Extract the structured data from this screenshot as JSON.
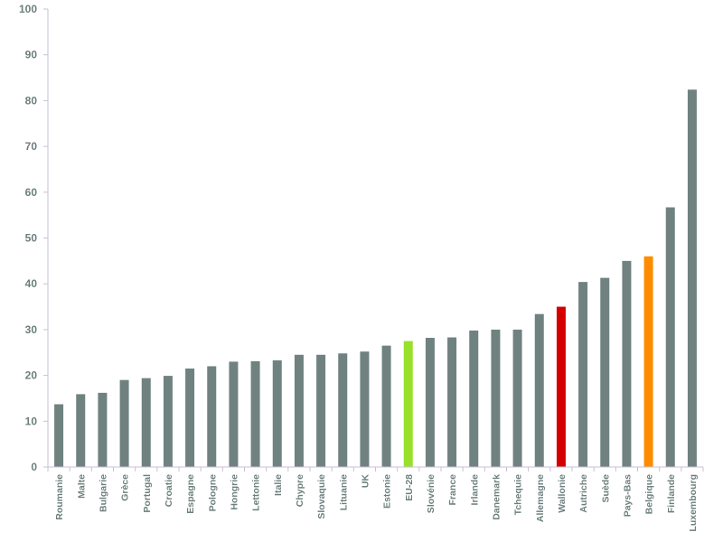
{
  "chart_data": {
    "type": "bar",
    "title": "",
    "xlabel": "",
    "ylabel": "",
    "ylim": [
      0,
      100
    ],
    "yticks": [
      0,
      10,
      20,
      30,
      40,
      50,
      60,
      70,
      80,
      90,
      100
    ],
    "grid": false,
    "legend": "none",
    "categories": [
      "Roumanie",
      "Malte",
      "Bulgarie",
      "Grèce",
      "Portugal",
      "Croatie",
      "Espagne",
      "Pologne",
      "Hongrie",
      "Lettonie",
      "Italie",
      "Chypre",
      "Slovaquie",
      "Lituanie",
      "UK",
      "Estonie",
      "EU-28",
      "Slovénie",
      "France",
      "Irlande",
      "Danemark",
      "Tchequie",
      "Allemagne",
      "Wallonie",
      "Autriche",
      "Suède",
      "Pays-Bas",
      "Belgique",
      "Finlande",
      "Luxembourg"
    ],
    "values": [
      13.7,
      15.9,
      16.2,
      19.0,
      19.4,
      19.9,
      21.5,
      22.0,
      23.0,
      23.1,
      23.3,
      24.5,
      24.5,
      24.8,
      25.2,
      26.5,
      27.5,
      28.2,
      28.3,
      29.8,
      30.0,
      30.0,
      33.4,
      35.0,
      40.4,
      41.3,
      45.0,
      46.0,
      56.7,
      82.4
    ],
    "colors": {
      "default": "#6f8280",
      "highlights": {
        "EU-28": "#99e02a",
        "Wallonie": "#d40000",
        "Belgique": "#ff8c00"
      },
      "axis": "#c9bfd9",
      "tick_text": "#6b7f7c"
    }
  }
}
